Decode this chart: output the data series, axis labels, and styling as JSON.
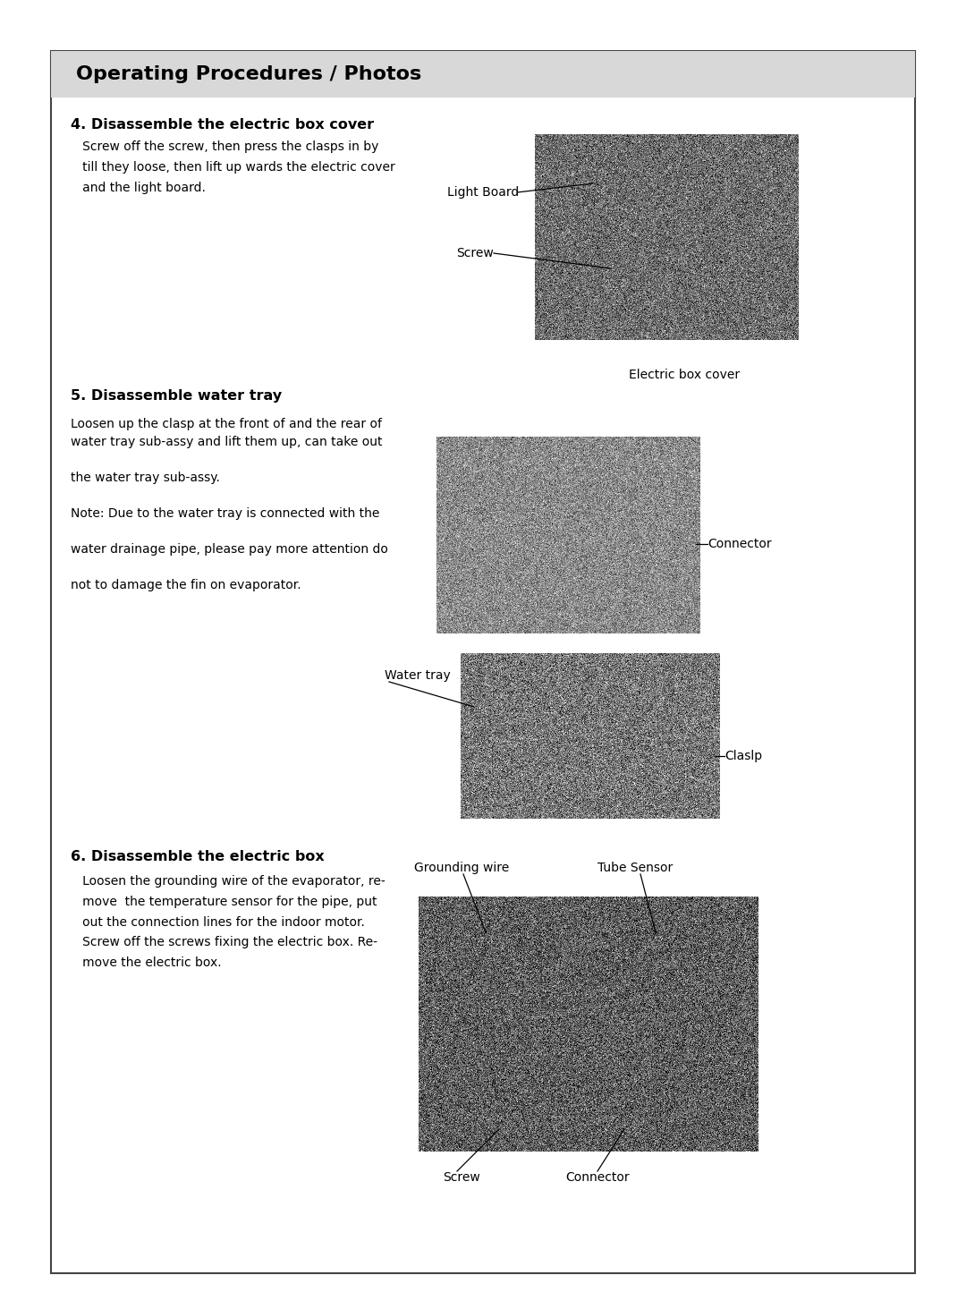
{
  "page_bg": "#ffffff",
  "outer_border_color": "#555555",
  "outer_border_lw": 1.5,
  "header_bg": "#d8d8d8",
  "header_text": "Operating Procedures / Photos",
  "header_fontsize": 16,
  "section4_title": "4. Disassemble the electric box cover",
  "section4_body": "   Screw off the screw, then press the clasps in by\n   till they loose, then lift up wards the electric cover\n   and the light board.",
  "section4_labels": [
    "Light Board",
    "Screw",
    "Electric box cover"
  ],
  "section5_title": "5. Disassemble water tray",
  "section5_body_lines": [
    "Loosen up the clasp at the front of and the rear of",
    "water tray sub-assy and lift them up, can take out",
    "",
    "the water tray sub-assy.",
    "",
    "Note: Due to the water tray is connected with the",
    "",
    "water drainage pipe, please pay more attention do",
    "",
    "not to damage the fin on evaporator."
  ],
  "section5_labels": [
    "Connector",
    "Water tray",
    "Claslp"
  ],
  "section6_title": "6. Disassemble the electric box",
  "section6_body": "   Loosen the grounding wire of the evaporator, re-\n   move  the temperature sensor for the pipe, put\n   out the connection lines for the indoor motor.\n   Screw off the screws fixing the electric box. Re-\n   move the electric box.",
  "section6_labels": [
    "Grounding wire",
    "Tube Sensor",
    "Screw",
    "Connector"
  ],
  "body_fontsize": 10,
  "label_fontsize": 10,
  "title_fontsize": 11.5,
  "line_color": "#000000",
  "note_fontsize": 10
}
